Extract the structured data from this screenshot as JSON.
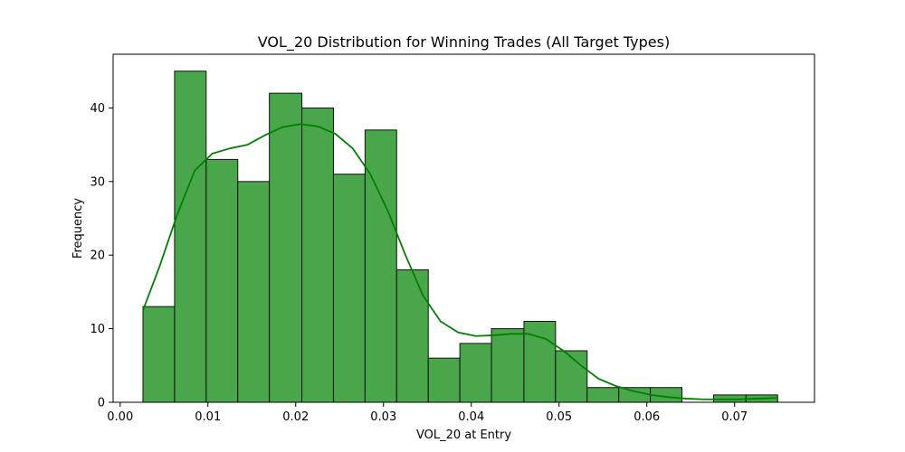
{
  "chart_data": {
    "type": "bar",
    "title": "VOL_20 Distribution for Winning Trades (All Target Types)",
    "xlabel": "VOL_20 at Entry",
    "ylabel": "Frequency",
    "xlim": [
      -0.0008,
      0.0791
    ],
    "ylim": [
      0,
      47.3
    ],
    "xticks": [
      0.0,
      0.01,
      0.02,
      0.03,
      0.04,
      0.05,
      0.06,
      0.07
    ],
    "xtick_labels": [
      "0.00",
      "0.01",
      "0.02",
      "0.03",
      "0.04",
      "0.05",
      "0.06",
      "0.07"
    ],
    "yticks": [
      0,
      10,
      20,
      30,
      40
    ],
    "ytick_labels": [
      "0",
      "10",
      "20",
      "30",
      "40"
    ],
    "bin_edges": [
      0.0026,
      0.0062,
      0.0098,
      0.0134,
      0.017,
      0.0207,
      0.0243,
      0.0279,
      0.0315,
      0.0351,
      0.0387,
      0.0423,
      0.046,
      0.0496,
      0.0532,
      0.0568,
      0.0604,
      0.064,
      0.0676,
      0.0713,
      0.0749
    ],
    "values": [
      13,
      45,
      33,
      30,
      42,
      40,
      31,
      37,
      18,
      6,
      8,
      10,
      11,
      7,
      2,
      2,
      2,
      0,
      1,
      1
    ],
    "kde": {
      "x": [
        0.0026,
        0.0045,
        0.0065,
        0.0085,
        0.0105,
        0.0125,
        0.0145,
        0.0165,
        0.0185,
        0.0205,
        0.0225,
        0.0245,
        0.0265,
        0.0285,
        0.0305,
        0.0325,
        0.0345,
        0.0365,
        0.0385,
        0.0405,
        0.0425,
        0.0445,
        0.0465,
        0.0485,
        0.0505,
        0.0525,
        0.0545,
        0.0565,
        0.0585,
        0.0605,
        0.0625,
        0.0645,
        0.0665,
        0.0685,
        0.0705,
        0.0725,
        0.0749
      ],
      "y": [
        12.5,
        18.5,
        25.5,
        31.5,
        33.8,
        34.5,
        35.0,
        36.3,
        37.4,
        37.8,
        37.5,
        36.5,
        34.5,
        31.0,
        26.0,
        20.0,
        14.5,
        11.0,
        9.5,
        9.0,
        9.1,
        9.3,
        9.3,
        8.6,
        7.0,
        5.0,
        3.2,
        2.2,
        1.5,
        1.0,
        0.7,
        0.5,
        0.4,
        0.4,
        0.4,
        0.5,
        0.6
      ]
    },
    "colors": {
      "bar_fill": "#4aa64a",
      "bar_edge": "#111111",
      "kde_line": "#008000"
    },
    "grid": false,
    "legend": "none"
  }
}
